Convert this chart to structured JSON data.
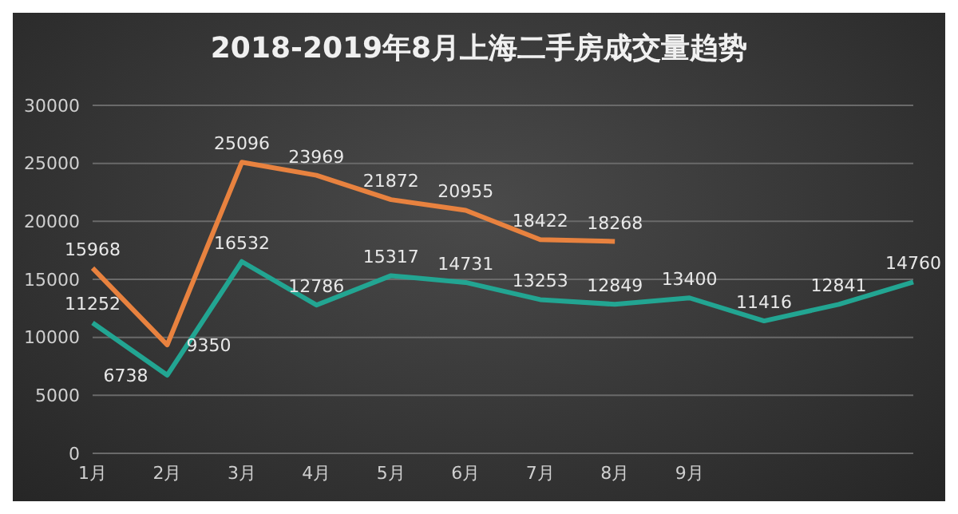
{
  "chart_data": {
    "type": "line",
    "title": "2018-2019年8月上海二手房成交量趋势",
    "categories": [
      "1月",
      "2月",
      "3月",
      "4月",
      "5月",
      "6月",
      "7月",
      "8月",
      "9月",
      null,
      null,
      null
    ],
    "series": [
      {
        "color": "#e8823f",
        "values": [
          15968,
          9350,
          25096,
          23969,
          21872,
          20955,
          18422,
          18268,
          null,
          null,
          null,
          null
        ]
      },
      {
        "color": "#22a592",
        "values": [
          11252,
          6738,
          16532,
          12786,
          15317,
          14731,
          13253,
          12849,
          13400,
          11416,
          12841,
          14760
        ]
      }
    ],
    "ylim": [
      0,
      30000
    ],
    "yticks": [
      0,
      5000,
      10000,
      15000,
      20000,
      25000,
      30000
    ],
    "grid": "y",
    "data_labels": true,
    "marker": "none",
    "line_style": "solid"
  }
}
